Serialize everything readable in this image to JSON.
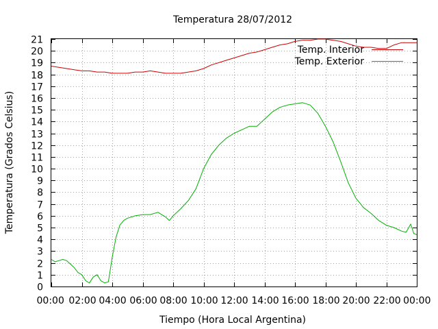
{
  "chart_data": {
    "type": "line",
    "title": "Temperatura 28/07/2012",
    "xlabel": "Tiempo (Hora Local Argentina)",
    "ylabel": "Temperatura (Grados Celsius)",
    "xlim": [
      0,
      24
    ],
    "ylim": [
      0,
      21
    ],
    "xticks": [
      {
        "value": 0,
        "label": "00:00"
      },
      {
        "value": 2,
        "label": "02:00"
      },
      {
        "value": 4,
        "label": "04:00"
      },
      {
        "value": 6,
        "label": "06:00"
      },
      {
        "value": 8,
        "label": "08:00"
      },
      {
        "value": 10,
        "label": "10:00"
      },
      {
        "value": 12,
        "label": "12:00"
      },
      {
        "value": 14,
        "label": "14:00"
      },
      {
        "value": 16,
        "label": "16:00"
      },
      {
        "value": 18,
        "label": "18:00"
      },
      {
        "value": 20,
        "label": "20:00"
      },
      {
        "value": 22,
        "label": "22:00"
      },
      {
        "value": 24,
        "label": "00:00"
      }
    ],
    "yticks": [
      0,
      1,
      2,
      3,
      4,
      5,
      6,
      7,
      8,
      9,
      10,
      11,
      12,
      13,
      14,
      15,
      16,
      17,
      18,
      19,
      20,
      21
    ],
    "grid": true,
    "legend_position": "top-right",
    "series": [
      {
        "name": "Temp. Interior",
        "color": "#cc0000",
        "x": [
          0,
          0.5,
          1,
          1.5,
          2,
          2.5,
          3,
          3.5,
          4,
          4.5,
          5,
          5.5,
          6,
          6.5,
          7,
          7.5,
          8,
          8.5,
          9,
          9.5,
          10,
          10.5,
          11,
          11.5,
          12,
          12.5,
          13,
          13.5,
          14,
          14.5,
          15,
          15.5,
          16,
          16.5,
          17,
          17.5,
          18,
          18.5,
          19,
          19.5,
          20,
          20.5,
          21,
          21.5,
          22,
          22.5,
          23,
          23.5,
          24
        ],
        "y": [
          18.7,
          18.6,
          18.5,
          18.4,
          18.3,
          18.3,
          18.2,
          18.2,
          18.1,
          18.1,
          18.1,
          18.2,
          18.2,
          18.3,
          18.2,
          18.1,
          18.1,
          18.1,
          18.2,
          18.3,
          18.5,
          18.8,
          19.0,
          19.2,
          19.4,
          19.6,
          19.8,
          19.9,
          20.1,
          20.3,
          20.5,
          20.6,
          20.8,
          20.9,
          20.9,
          21.0,
          21.0,
          20.9,
          20.8,
          20.6,
          20.4,
          20.3,
          20.3,
          20.2,
          20.2,
          20.5,
          20.7,
          20.7,
          20.7
        ]
      },
      {
        "name": "Temp. Exterior",
        "color": "#00b000",
        "x": [
          0,
          0.25,
          0.5,
          0.75,
          1.0,
          1.25,
          1.5,
          1.75,
          2.0,
          2.25,
          2.5,
          2.75,
          3.0,
          3.25,
          3.5,
          3.75,
          4.0,
          4.25,
          4.5,
          4.75,
          5.0,
          5.5,
          6.0,
          6.5,
          7.0,
          7.5,
          7.75,
          8.0,
          8.5,
          9.0,
          9.5,
          10.0,
          10.5,
          11.0,
          11.5,
          12.0,
          12.5,
          13.0,
          13.5,
          14.0,
          14.5,
          15.0,
          15.5,
          16.0,
          16.5,
          17.0,
          17.5,
          18.0,
          18.5,
          19.0,
          19.5,
          20.0,
          20.5,
          21.0,
          21.5,
          22.0,
          22.5,
          23.0,
          23.3,
          23.6,
          23.8,
          24.0
        ],
        "y": [
          2.3,
          2.1,
          2.2,
          2.3,
          2.2,
          1.9,
          1.6,
          1.2,
          1.0,
          0.5,
          0.3,
          0.8,
          1.0,
          0.5,
          0.3,
          0.4,
          2.5,
          4.2,
          5.2,
          5.6,
          5.8,
          6.0,
          6.1,
          6.1,
          6.3,
          5.9,
          5.6,
          6.0,
          6.6,
          7.3,
          8.3,
          10.0,
          11.2,
          12.0,
          12.6,
          13.0,
          13.3,
          13.6,
          13.6,
          14.2,
          14.8,
          15.2,
          15.4,
          15.5,
          15.6,
          15.4,
          14.7,
          13.6,
          12.3,
          10.6,
          8.8,
          7.5,
          6.7,
          6.2,
          5.6,
          5.2,
          5.0,
          4.7,
          4.6,
          5.3,
          4.5,
          4.4
        ]
      }
    ]
  }
}
